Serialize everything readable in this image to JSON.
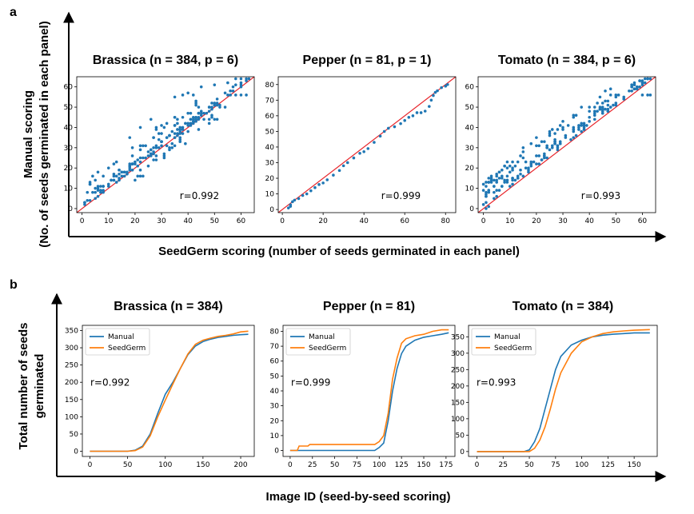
{
  "panel_a": {
    "letter": "a",
    "ylabel_line1": "Manual scoring",
    "ylabel_line2": "(No. of seeds germinated in each panel)",
    "xlabel": "SeedGerm scoring (number of seeds germinated in each panel)"
  },
  "panel_b": {
    "letter": "b",
    "ylabel_line1": "Total number of seeds",
    "ylabel_line2": "germinated",
    "xlabel": "Image ID (seed-by-seed scoring)"
  },
  "colors": {
    "points": "#1f77b4",
    "identity_line": "#e8242a",
    "manual": "#1f77b4",
    "seedgerm": "#ff7f0e"
  },
  "chart_data": [
    {
      "id": "scatter-brassica",
      "type": "scatter",
      "title": "Brassica (n = 384, p = 6)",
      "xlim": [
        -2,
        65
      ],
      "ylim": [
        -2,
        65
      ],
      "xticks": [
        0,
        10,
        20,
        30,
        40,
        50,
        60
      ],
      "yticks": [
        0,
        10,
        20,
        30,
        40,
        50,
        60
      ],
      "annotation": "r=0.992",
      "bands": [
        {
          "x0": 0,
          "x1": 62,
          "off": 1.5,
          "spread": 2,
          "n": 130
        },
        {
          "x0": 2,
          "x1": 44,
          "off": 7,
          "spread": 5,
          "n": 55
        },
        {
          "x0": 20,
          "x1": 55,
          "off": -4,
          "spread": 3,
          "n": 35
        }
      ],
      "extra_points": [
        [
          2,
          8
        ],
        [
          3,
          12
        ],
        [
          5,
          14
        ],
        [
          8,
          16
        ],
        [
          10,
          20
        ],
        [
          12,
          22
        ],
        [
          18,
          35
        ],
        [
          22,
          40
        ],
        [
          26,
          44
        ],
        [
          35,
          55
        ],
        [
          38,
          56
        ],
        [
          40,
          57
        ],
        [
          42,
          56
        ],
        [
          45,
          60
        ],
        [
          50,
          61
        ],
        [
          55,
          62
        ],
        [
          58,
          64
        ],
        [
          60,
          64
        ],
        [
          62,
          64
        ],
        [
          63,
          64
        ],
        [
          56,
          56
        ],
        [
          58,
          56
        ],
        [
          60,
          56
        ],
        [
          62,
          56
        ]
      ]
    },
    {
      "id": "scatter-pepper",
      "type": "scatter",
      "title": "Pepper (n = 81, p = 1)",
      "xlim": [
        -2,
        85
      ],
      "ylim": [
        -2,
        85
      ],
      "xticks": [
        0,
        20,
        40,
        60,
        80
      ],
      "yticks": [
        0,
        10,
        20,
        30,
        40,
        50,
        60,
        70,
        80
      ],
      "annotation": "r=0.999",
      "points": [
        [
          3,
          1
        ],
        [
          4,
          2
        ],
        [
          4,
          3
        ],
        [
          5,
          5
        ],
        [
          6,
          6
        ],
        [
          8,
          7
        ],
        [
          10,
          9
        ],
        [
          12,
          10
        ],
        [
          14,
          12
        ],
        [
          16,
          14
        ],
        [
          18,
          16
        ],
        [
          20,
          17
        ],
        [
          22,
          19
        ],
        [
          25,
          22
        ],
        [
          28,
          25
        ],
        [
          30,
          28
        ],
        [
          32,
          30
        ],
        [
          35,
          33
        ],
        [
          38,
          36
        ],
        [
          40,
          37
        ],
        [
          42,
          39
        ],
        [
          45,
          43
        ],
        [
          48,
          47
        ],
        [
          50,
          50
        ],
        [
          52,
          52
        ],
        [
          55,
          53
        ],
        [
          58,
          55
        ],
        [
          60,
          57
        ],
        [
          62,
          59
        ],
        [
          64,
          60
        ],
        [
          66,
          62
        ],
        [
          68,
          62
        ],
        [
          70,
          63
        ],
        [
          72,
          66
        ],
        [
          73,
          70
        ],
        [
          74,
          73
        ],
        [
          75,
          75
        ],
        [
          76,
          76
        ],
        [
          78,
          78
        ],
        [
          80,
          79
        ],
        [
          81,
          80
        ]
      ]
    },
    {
      "id": "scatter-tomato",
      "type": "scatter",
      "title": "Tomato (n = 384, p = 6)",
      "xlim": [
        -2,
        65
      ],
      "ylim": [
        -2,
        65
      ],
      "xticks": [
        0,
        10,
        20,
        30,
        40,
        50,
        60
      ],
      "yticks": [
        0,
        10,
        20,
        30,
        40,
        50,
        60
      ],
      "annotation": "r=0.993",
      "bands": [
        {
          "x0": 0,
          "x1": 63,
          "off": 3,
          "spread": 2.5,
          "n": 120
        },
        {
          "x0": 0,
          "x1": 50,
          "off": 9,
          "spread": 5,
          "n": 70
        },
        {
          "x0": 0,
          "x1": 12,
          "off": 10,
          "spread": 4,
          "n": 25
        }
      ],
      "extra_points": [
        [
          1,
          0
        ],
        [
          2,
          1
        ],
        [
          15,
          30
        ],
        [
          18,
          32
        ],
        [
          20,
          35
        ],
        [
          25,
          38
        ],
        [
          30,
          40
        ],
        [
          35,
          46
        ],
        [
          40,
          50
        ],
        [
          45,
          52
        ],
        [
          50,
          56
        ],
        [
          55,
          58
        ],
        [
          58,
          60
        ],
        [
          60,
          62
        ],
        [
          62,
          64
        ],
        [
          63,
          64
        ],
        [
          60,
          56
        ],
        [
          62,
          56
        ],
        [
          63,
          56
        ]
      ]
    },
    {
      "id": "cumul-brassica",
      "type": "line",
      "title": "Brassica (n = 384)",
      "xlim": [
        -10,
        218
      ],
      "ylim": [
        -15,
        365
      ],
      "xticks": [
        0,
        50,
        100,
        150,
        200
      ],
      "yticks": [
        0,
        50,
        100,
        150,
        200,
        250,
        300,
        350
      ],
      "annotation": "r=0.992",
      "legend": "top-left",
      "series": [
        {
          "name": "Manual",
          "color": "#1f77b4",
          "points": [
            [
              0,
              0
            ],
            [
              50,
              0
            ],
            [
              60,
              3
            ],
            [
              70,
              15
            ],
            [
              80,
              50
            ],
            [
              90,
              110
            ],
            [
              100,
              165
            ],
            [
              110,
              200
            ],
            [
              120,
              240
            ],
            [
              130,
              280
            ],
            [
              140,
              305
            ],
            [
              150,
              318
            ],
            [
              160,
              325
            ],
            [
              170,
              330
            ],
            [
              180,
              333
            ],
            [
              190,
              336
            ],
            [
              200,
              338
            ],
            [
              210,
              339
            ]
          ]
        },
        {
          "name": "SeedGerm",
          "color": "#ff7f0e",
          "points": [
            [
              0,
              0
            ],
            [
              50,
              0
            ],
            [
              60,
              2
            ],
            [
              70,
              12
            ],
            [
              80,
              45
            ],
            [
              90,
              100
            ],
            [
              100,
              148
            ],
            [
              110,
              195
            ],
            [
              120,
              240
            ],
            [
              130,
              282
            ],
            [
              140,
              310
            ],
            [
              150,
              322
            ],
            [
              160,
              328
            ],
            [
              170,
              333
            ],
            [
              180,
              336
            ],
            [
              190,
              340
            ],
            [
              200,
              346
            ],
            [
              210,
              348
            ]
          ]
        }
      ]
    },
    {
      "id": "cumul-pepper",
      "type": "line",
      "title": "Pepper (n = 81)",
      "xlim": [
        -8,
        185
      ],
      "ylim": [
        -4,
        84
      ],
      "xticks": [
        0,
        25,
        50,
        75,
        100,
        125,
        150,
        175
      ],
      "yticks": [
        0,
        10,
        20,
        30,
        40,
        50,
        60,
        70,
        80
      ],
      "annotation": "r=0.999",
      "legend": "top-left",
      "series": [
        {
          "name": "Manual",
          "color": "#1f77b4",
          "points": [
            [
              0,
              0
            ],
            [
              95,
              0
            ],
            [
              100,
              2
            ],
            [
              105,
              5
            ],
            [
              110,
              20
            ],
            [
              115,
              40
            ],
            [
              120,
              55
            ],
            [
              125,
              65
            ],
            [
              130,
              70
            ],
            [
              140,
              74
            ],
            [
              150,
              76
            ],
            [
              160,
              77
            ],
            [
              170,
              78
            ],
            [
              178,
              79
            ]
          ]
        },
        {
          "name": "SeedGerm",
          "color": "#ff7f0e",
          "points": [
            [
              0,
              0
            ],
            [
              8,
              0
            ],
            [
              10,
              3
            ],
            [
              20,
              3
            ],
            [
              22,
              4
            ],
            [
              95,
              4
            ],
            [
              100,
              6
            ],
            [
              105,
              10
            ],
            [
              110,
              25
            ],
            [
              115,
              48
            ],
            [
              120,
              62
            ],
            [
              125,
              72
            ],
            [
              130,
              75
            ],
            [
              140,
              77
            ],
            [
              150,
              78
            ],
            [
              160,
              80
            ],
            [
              170,
              81
            ],
            [
              178,
              81
            ]
          ]
        }
      ]
    },
    {
      "id": "cumul-tomato",
      "type": "line",
      "title": "Tomato (n = 384)",
      "xlim": [
        -8,
        172
      ],
      "ylim": [
        -15,
        385
      ],
      "xticks": [
        0,
        25,
        50,
        75,
        100,
        125,
        150
      ],
      "yticks": [
        0,
        50,
        100,
        150,
        200,
        250,
        300,
        350
      ],
      "annotation": "r=0.993",
      "legend": "top-left",
      "series": [
        {
          "name": "Manual",
          "color": "#1f77b4",
          "points": [
            [
              0,
              0
            ],
            [
              45,
              0
            ],
            [
              50,
              5
            ],
            [
              55,
              30
            ],
            [
              60,
              70
            ],
            [
              65,
              130
            ],
            [
              70,
              190
            ],
            [
              75,
              250
            ],
            [
              80,
              290
            ],
            [
              90,
              325
            ],
            [
              100,
              340
            ],
            [
              110,
              350
            ],
            [
              120,
              355
            ],
            [
              130,
              358
            ],
            [
              140,
              360
            ],
            [
              150,
              362
            ],
            [
              165,
              362
            ]
          ]
        },
        {
          "name": "SeedGerm",
          "color": "#ff7f0e",
          "points": [
            [
              0,
              0
            ],
            [
              50,
              0
            ],
            [
              55,
              10
            ],
            [
              60,
              35
            ],
            [
              65,
              75
            ],
            [
              70,
              130
            ],
            [
              75,
              190
            ],
            [
              80,
              240
            ],
            [
              90,
              300
            ],
            [
              100,
              335
            ],
            [
              110,
              350
            ],
            [
              120,
              360
            ],
            [
              130,
              365
            ],
            [
              140,
              368
            ],
            [
              150,
              370
            ],
            [
              165,
              372
            ]
          ]
        }
      ]
    }
  ]
}
